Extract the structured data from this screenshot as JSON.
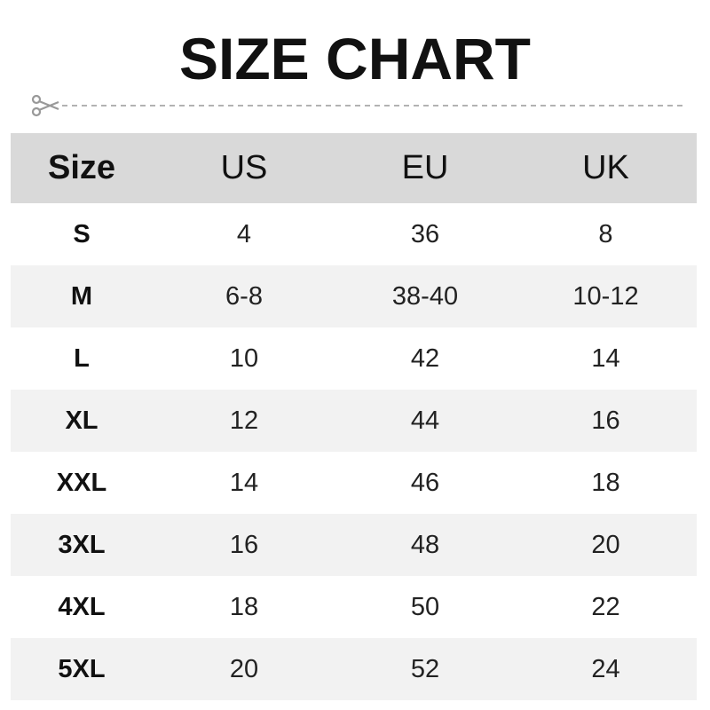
{
  "title": "SIZE CHART",
  "table": {
    "headers": [
      "Size",
      "US",
      "EU",
      "UK"
    ],
    "rows": [
      [
        "S",
        "4",
        "36",
        "8"
      ],
      [
        "M",
        "6-8",
        "38-40",
        "10-12"
      ],
      [
        "L",
        "10",
        "42",
        "14"
      ],
      [
        "XL",
        "12",
        "44",
        "16"
      ],
      [
        "XXL",
        "14",
        "46",
        "18"
      ],
      [
        "3XL",
        "16",
        "48",
        "20"
      ],
      [
        "4XL",
        "18",
        "50",
        "22"
      ],
      [
        "5XL",
        "20",
        "52",
        "24"
      ]
    ]
  },
  "colors": {
    "header_bg": "#d9d9d9",
    "alt_row_bg": "#f2f2f2",
    "cut_line": "#999999"
  },
  "icons": {
    "cut": "scissors-icon"
  }
}
